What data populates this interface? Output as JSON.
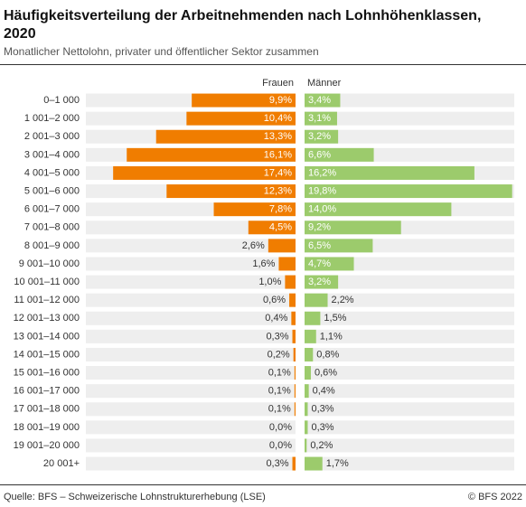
{
  "chart_data": {
    "type": "butterfly-bar",
    "title": [
      "Häufigkeitsverteilung der Arbeitnehmenden nach Lohnhöhenklassen,",
      "2020"
    ],
    "subtitle": "Monatlicher Nettolohn, privater und öffentlicher Sektor zusammen",
    "categories": [
      "0–1 000",
      "1 001–2 000",
      "2 001–3 000",
      "3 001–4 000",
      "4 001–5 000",
      "5 001–6 000",
      "6 001–7 000",
      "7 001–8 000",
      "8 001–9 000",
      "9 001–10 000",
      "10 001–11 000",
      "11 001–12 000",
      "12 001–13 000",
      "13 001–14 000",
      "14 001–15 000",
      "15 001–16 000",
      "16 001–17 000",
      "17 001–18 000",
      "18 001–19 000",
      "19 001–20 000",
      "20 001+"
    ],
    "xlim": [
      0,
      20
    ],
    "series": [
      {
        "name": "Frauen",
        "color": "#f07d00",
        "values": [
          9.9,
          10.4,
          13.3,
          16.1,
          17.4,
          12.3,
          7.8,
          4.5,
          2.6,
          1.6,
          1.0,
          0.6,
          0.4,
          0.3,
          0.2,
          0.1,
          0.1,
          0.1,
          0.0,
          0.0,
          0.3
        ],
        "value_labels": [
          "9,9%",
          "10,4%",
          "13,3%",
          "16,1%",
          "17,4%",
          "12,3%",
          "7,8%",
          "4,5%",
          "2,6%",
          "1,6%",
          "1,0%",
          "0,6%",
          "0,4%",
          "0,3%",
          "0,2%",
          "0,1%",
          "0,1%",
          "0,1%",
          "0,0%",
          "0,0%",
          "0,3%"
        ]
      },
      {
        "name": "Männer",
        "color": "#9ccb6c",
        "values": [
          3.4,
          3.1,
          3.2,
          6.6,
          16.2,
          19.8,
          14.0,
          9.2,
          6.5,
          4.7,
          3.2,
          2.2,
          1.5,
          1.1,
          0.8,
          0.6,
          0.4,
          0.3,
          0.3,
          0.2,
          1.7
        ],
        "value_labels": [
          "3,4%",
          "3,1%",
          "3,2%",
          "6,6%",
          "16,2%",
          "19,8%",
          "14,0%",
          "9,2%",
          "6,5%",
          "4,7%",
          "3,2%",
          "2,2%",
          "1,5%",
          "1,1%",
          "0,8%",
          "0,6%",
          "0,4%",
          "0,3%",
          "0,3%",
          "0,2%",
          "1,7%"
        ]
      }
    ],
    "source": "Quelle: BFS – Schweizerische Lohnstrukturerhebung (LSE)",
    "copyright": "© BFS 2022"
  }
}
